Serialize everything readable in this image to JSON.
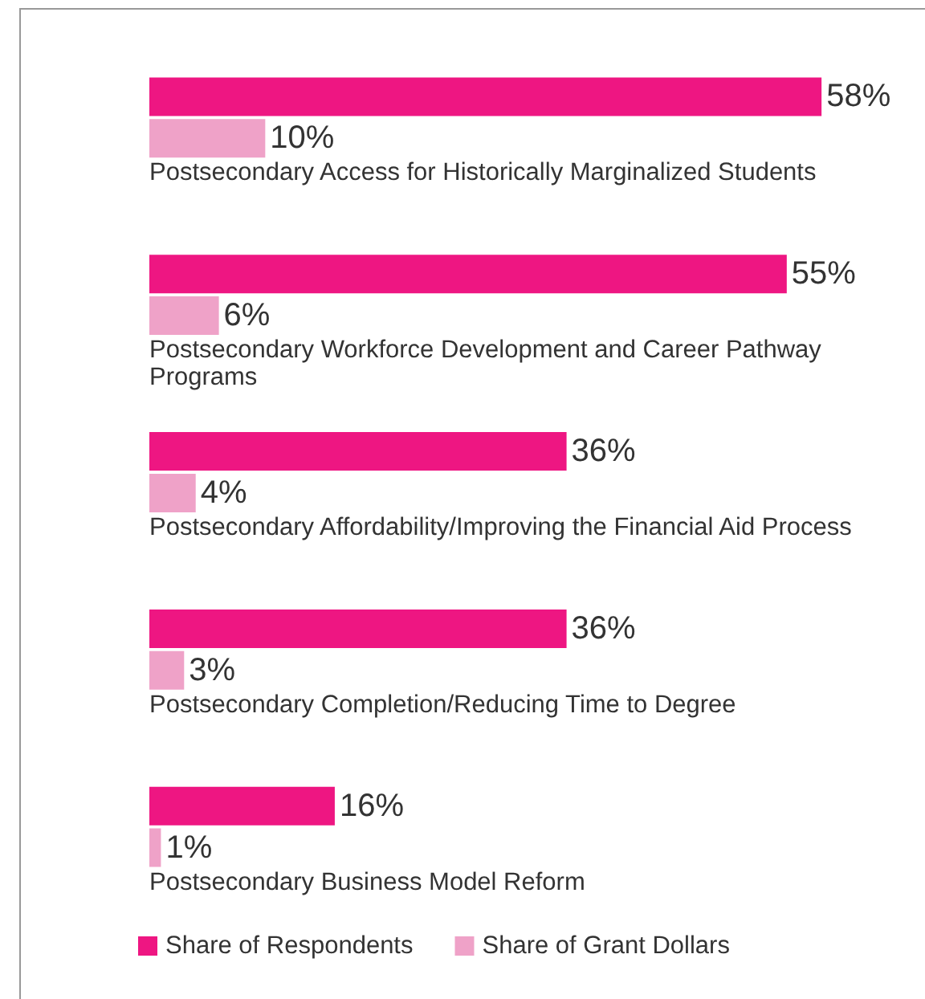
{
  "chart_data": {
    "type": "bar",
    "orientation": "horizontal",
    "categories": [
      "Postsecondary Access for Historically Marginalized Students",
      "Postsecondary Workforce Development and Career Pathway Programs",
      "Postsecondary Affordability/Improving the Financial Aid Process",
      "Postsecondary Completion/Reducing Time to Degree",
      "Postsecondary Business Model Reform"
    ],
    "series": [
      {
        "name": "Share of Respondents",
        "color": "#ee1682",
        "values": [
          58,
          55,
          36,
          36,
          16
        ],
        "value_labels": [
          "58%",
          "55%",
          "36%",
          "36%",
          "16%"
        ]
      },
      {
        "name": "Share of Grant Dollars",
        "color": "#efa2c8",
        "values": [
          10,
          6,
          4,
          3,
          1
        ],
        "value_labels": [
          "10%",
          "6%",
          "4%",
          "3%",
          "1%"
        ]
      }
    ],
    "legend": "bottom"
  }
}
